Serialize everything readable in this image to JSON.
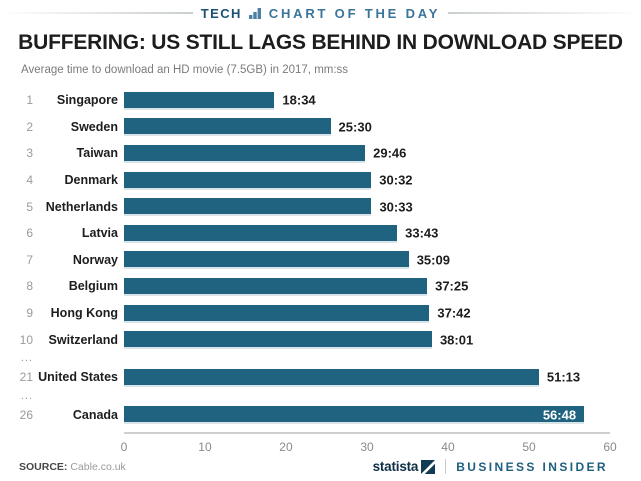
{
  "header": {
    "section": "TECH",
    "series": "CHART OF THE DAY",
    "icon": "bar-chart-icon",
    "accent_dark": "#1c5174",
    "accent_light": "#39749a"
  },
  "chart_data": {
    "type": "bar",
    "orientation": "horizontal",
    "title": "BUFFERING: US STILL LAGS BEHIND IN DOWNLOAD SPEED",
    "subtitle": "Average time to download an HD movie (7.5GB) in 2017, mm:ss",
    "unit": "mm:ss",
    "xlim": [
      0,
      60
    ],
    "x_ticks": [
      0,
      10,
      20,
      30,
      40,
      50,
      60
    ],
    "grid": false,
    "legend": "none",
    "bar_color": "#1f6380",
    "rows": [
      {
        "rank": "1",
        "country": "Singapore",
        "value": "18:34",
        "minutes": 18.57
      },
      {
        "rank": "2",
        "country": "Sweden",
        "value": "25:30",
        "minutes": 25.5
      },
      {
        "rank": "3",
        "country": "Taiwan",
        "value": "29:46",
        "minutes": 29.77
      },
      {
        "rank": "4",
        "country": "Denmark",
        "value": "30:32",
        "minutes": 30.53
      },
      {
        "rank": "5",
        "country": "Netherlands",
        "value": "30:33",
        "minutes": 30.55
      },
      {
        "rank": "6",
        "country": "Latvia",
        "value": "33:43",
        "minutes": 33.72
      },
      {
        "rank": "7",
        "country": "Norway",
        "value": "35:09",
        "minutes": 35.15
      },
      {
        "rank": "8",
        "country": "Belgium",
        "value": "37:25",
        "minutes": 37.42
      },
      {
        "rank": "9",
        "country": "Hong Kong",
        "value": "37:42",
        "minutes": 37.7
      },
      {
        "rank": "10",
        "country": "Switzerland",
        "value": "38:01",
        "minutes": 38.02
      },
      {
        "type": "gap",
        "label": "..."
      },
      {
        "rank": "21",
        "country": "United States",
        "value": "51:13",
        "minutes": 51.22
      },
      {
        "type": "gap",
        "label": "..."
      },
      {
        "rank": "26",
        "country": "Canada",
        "value": "56:48",
        "minutes": 56.8
      }
    ]
  },
  "footer": {
    "source_label": "SOURCE:",
    "source_value": "Cable.co.uk",
    "statista": "statista",
    "publisher": "BUSINESS INSIDER",
    "publisher_color": "#1d5f7e",
    "statista_color": "#0e2f45"
  }
}
